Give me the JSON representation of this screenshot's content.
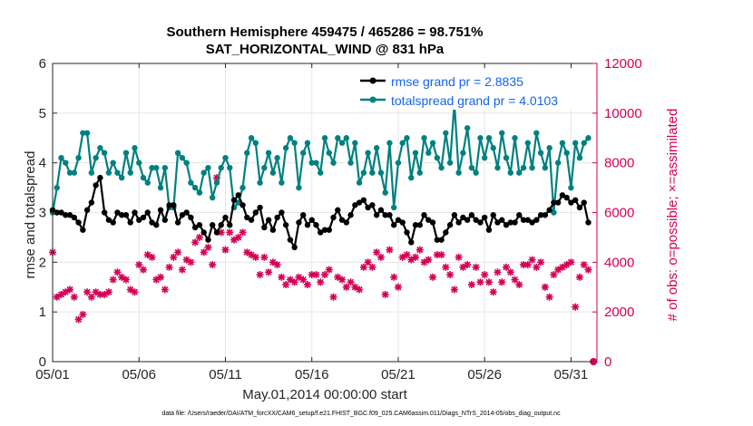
{
  "chart_data": {
    "type": "line",
    "title": "Southern Hemisphere 459475 / 465286 = 98.751%",
    "subtitle": "SAT_HORIZONTAL_WIND @ 831 hPa",
    "xlabel": "May.01,2014 00:00:00 start",
    "ylabel_left": "rmse and totalspread",
    "ylabel_right": "# of obs: o=possible; ×=assimilated",
    "xlim": [
      0,
      31.5
    ],
    "ylim_left": [
      0,
      6
    ],
    "ylim_right": [
      0,
      12000
    ],
    "x_ticks": [
      0,
      5,
      10,
      15,
      20,
      25,
      30
    ],
    "x_tick_labels": [
      "05/01",
      "05/06",
      "05/11",
      "05/16",
      "05/21",
      "05/26",
      "05/31"
    ],
    "y_ticks_left": [
      0,
      1,
      2,
      3,
      4,
      5,
      6
    ],
    "y_ticks_right": [
      0,
      2000,
      4000,
      6000,
      8000,
      10000,
      12000
    ],
    "grid": true,
    "legend_position": "top-right",
    "colors": {
      "rmse": "#000000",
      "totalspread": "#008080",
      "obs": "#d40055",
      "right_axis": "#d40055",
      "legend_text": "#1464f0"
    },
    "series": [
      {
        "name": "rmse grand pr = 2.8835",
        "axis": "left",
        "color": "#000000",
        "x": [
          0.0,
          0.25,
          0.5,
          0.75,
          1.0,
          1.25,
          1.5,
          1.75,
          2.0,
          2.25,
          2.5,
          2.75,
          3.0,
          3.25,
          3.5,
          3.75,
          4.0,
          4.25,
          4.5,
          4.75,
          5.0,
          5.25,
          5.5,
          5.75,
          6.0,
          6.25,
          6.5,
          6.75,
          7.0,
          7.25,
          7.5,
          7.75,
          8.0,
          8.25,
          8.5,
          8.75,
          9.0,
          9.25,
          9.5,
          9.75,
          10.0,
          10.25,
          10.5,
          10.75,
          11.0,
          11.25,
          11.5,
          11.75,
          12.0,
          12.25,
          12.5,
          12.75,
          13.0,
          13.25,
          13.5,
          13.75,
          14.0,
          14.25,
          14.5,
          14.75,
          15.0,
          15.25,
          15.5,
          15.75,
          16.0,
          16.25,
          16.5,
          16.75,
          17.0,
          17.25,
          17.5,
          17.75,
          18.0,
          18.25,
          18.5,
          18.75,
          19.0,
          19.25,
          19.5,
          19.75,
          20.0,
          20.25,
          20.5,
          20.75,
          21.0,
          21.25,
          21.5,
          21.75,
          22.0,
          22.25,
          22.5,
          22.75,
          23.0,
          23.25,
          23.5,
          23.75,
          24.0,
          24.25,
          24.5,
          24.75,
          25.0,
          25.25,
          25.5,
          25.75,
          26.0,
          26.25,
          26.5,
          26.75,
          27.0,
          27.25,
          27.5,
          27.75,
          28.0,
          28.25,
          28.5,
          28.75,
          29.0,
          29.25,
          29.5,
          29.75,
          30.0,
          30.25,
          30.5,
          30.75,
          31.0
        ],
        "values": [
          3.05,
          3.0,
          3.0,
          2.95,
          2.95,
          2.9,
          2.8,
          2.65,
          3.05,
          3.2,
          3.55,
          3.7,
          3.0,
          2.85,
          2.8,
          3.0,
          2.95,
          2.95,
          2.8,
          3.0,
          2.85,
          2.9,
          3.0,
          2.8,
          2.75,
          3.05,
          2.85,
          3.15,
          3.15,
          2.8,
          2.95,
          3.0,
          2.9,
          2.7,
          2.75,
          2.6,
          2.45,
          2.75,
          2.6,
          2.75,
          2.9,
          2.75,
          3.25,
          3.35,
          3.15,
          2.9,
          2.85,
          3.0,
          3.1,
          2.7,
          2.85,
          2.65,
          2.9,
          3.0,
          2.75,
          2.45,
          2.3,
          2.8,
          2.95,
          2.75,
          2.85,
          2.75,
          2.6,
          2.65,
          2.65,
          2.9,
          3.05,
          2.85,
          2.8,
          2.95,
          3.15,
          3.2,
          3.25,
          3.1,
          3.15,
          2.95,
          3.05,
          2.95,
          2.95,
          2.75,
          2.85,
          2.8,
          2.6,
          2.4,
          2.75,
          2.75,
          2.95,
          2.85,
          2.8,
          2.45,
          2.45,
          2.6,
          2.75,
          2.95,
          2.8,
          2.9,
          2.85,
          2.95,
          2.85,
          2.8,
          2.9,
          2.65,
          2.95,
          2.8,
          2.85,
          2.75,
          2.8,
          2.8,
          2.95,
          2.85,
          2.85,
          2.8,
          2.85,
          2.95,
          2.95,
          3.05,
          3.2,
          3.2,
          3.35,
          3.3,
          3.2,
          3.25,
          3.1,
          3.2,
          2.8
        ],
        "notes": "values approximated from plot; rendered points computed in script"
      },
      {
        "name": "totalspread grand pr = 4.0103",
        "axis": "left",
        "color": "#008080"
      },
      {
        "name": "",
        "axis": "right",
        "marker": "asterisk",
        "color": "#d40055"
      }
    ]
  },
  "footnote": "data file: /Users/raeder/DAI/ATM_forcXX/CAM6_setup/f.e21.FHIST_BGC.f09_025.CAM6assim.011/Diags_NTrS_2014-05/obs_diag_output.nc"
}
